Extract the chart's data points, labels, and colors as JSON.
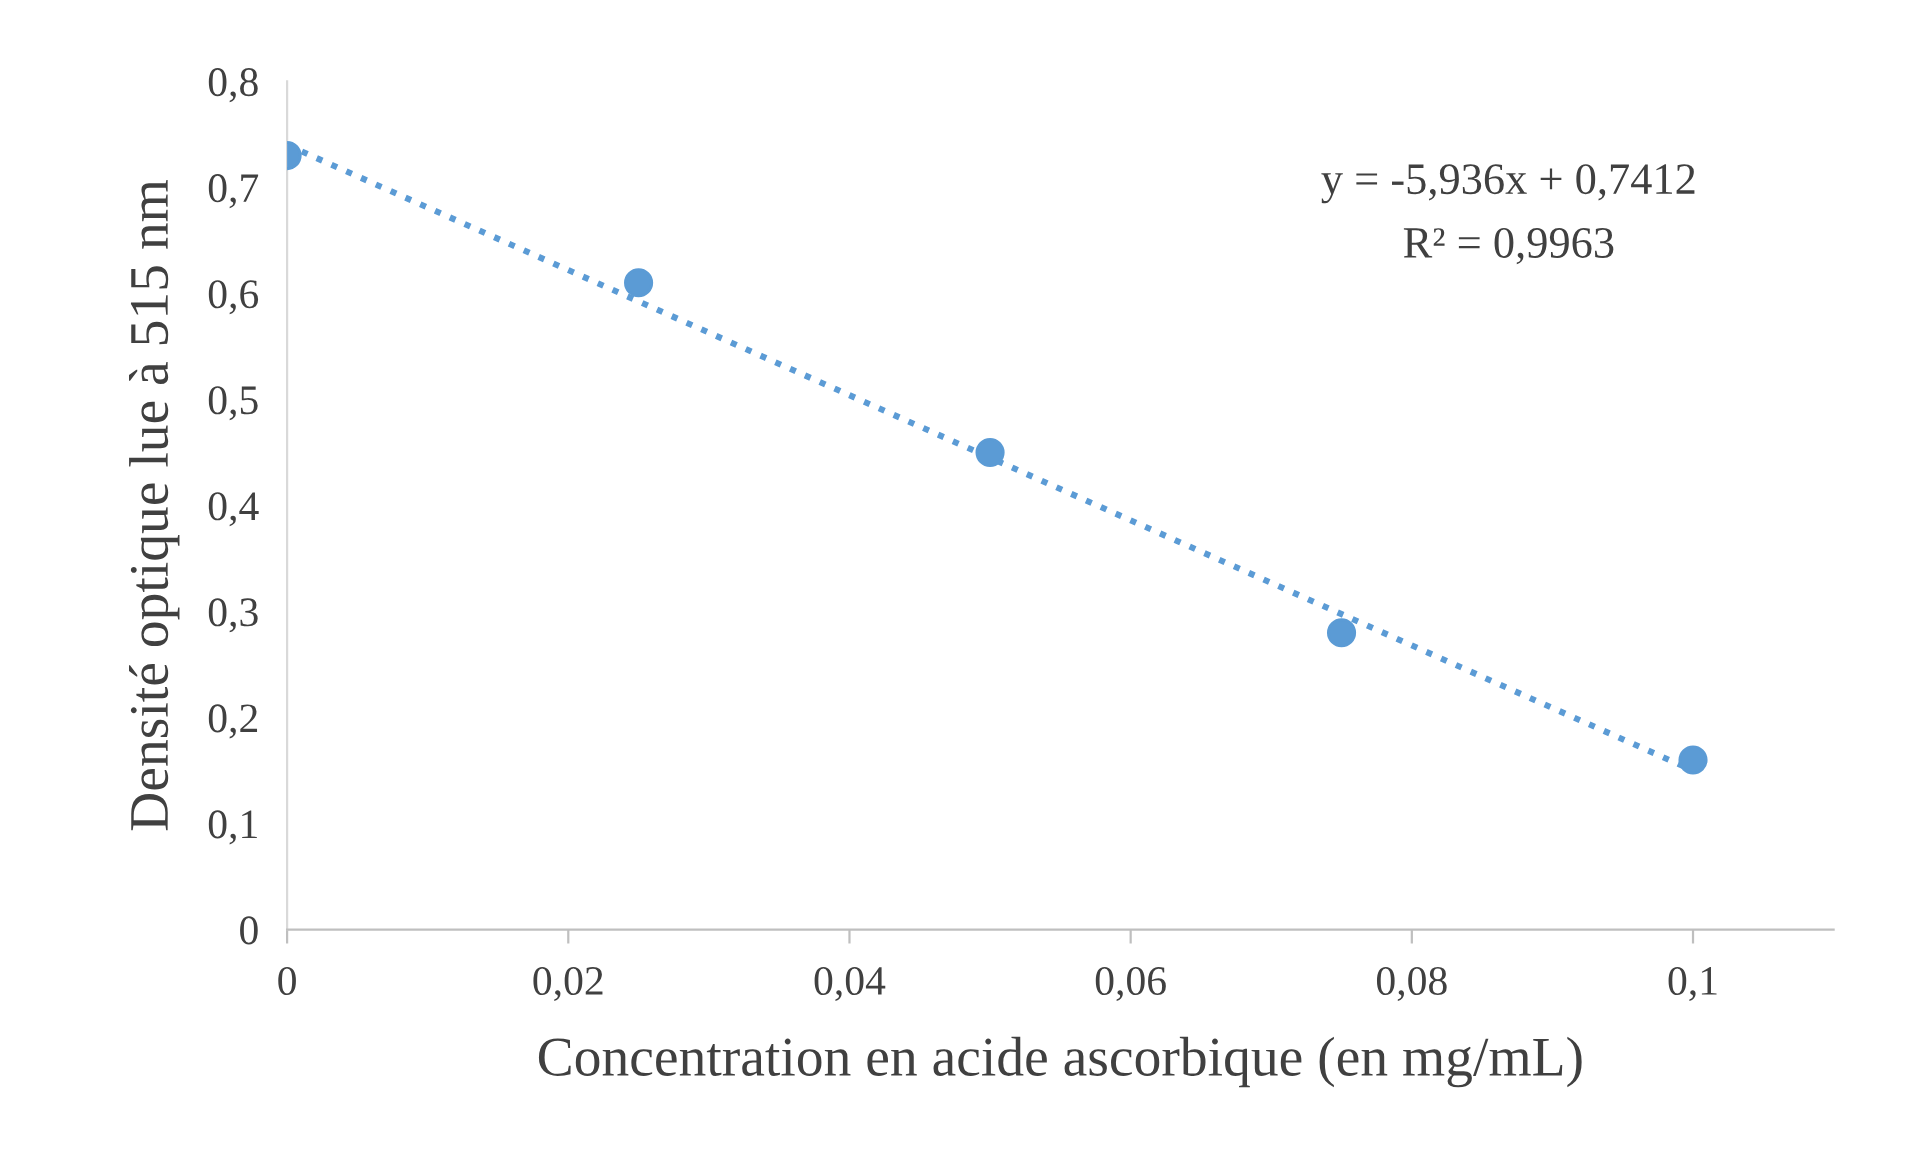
{
  "chart_data": {
    "type": "scatter",
    "xlabel": "Concentration en acide ascorbique (en mg/mL)",
    "ylabel": "Densité optique lue à 515 nm",
    "x": [
      0,
      0.025,
      0.05,
      0.075,
      0.1
    ],
    "series": [
      {
        "color": "#5b9bd5",
        "marker": "circle",
        "values": [
          0.73,
          0.61,
          0.45,
          0.28,
          0.16
        ]
      },
      {
        "type": "line",
        "color": "#5b9bd5",
        "line_style": "dotted",
        "marker": "none",
        "x": [
          0,
          0.1
        ],
        "values": [
          0.74,
          0.15
        ]
      }
    ],
    "annotations": [
      "y = -5,936x + 0,7412",
      "R² = 0,9963"
    ],
    "xlim": [
      0,
      0.11
    ],
    "ylim": [
      0,
      0.8
    ],
    "xticks": [
      0,
      {
        "value": 0.02,
        "label": "0,02"
      },
      {
        "value": 0.04,
        "label": "0,04"
      },
      {
        "value": 0.06,
        "label": "0,06"
      },
      {
        "value": 0.08,
        "label": "0,08"
      },
      {
        "value": 0.1,
        "label": "0,1"
      }
    ],
    "yticks": [
      0,
      {
        "value": 0.1,
        "label": "0,1"
      },
      {
        "value": 0.2,
        "label": "0,2"
      },
      {
        "value": 0.3,
        "label": "0,3"
      },
      {
        "value": 0.4,
        "label": "0,4"
      },
      {
        "value": 0.5,
        "label": "0,5"
      },
      {
        "value": 0.6,
        "label": "0,6"
      },
      {
        "value": 0.7,
        "label": "0,7"
      },
      {
        "value": 0.8,
        "label": "0,8"
      }
    ],
    "grid": false,
    "legend": false
  }
}
